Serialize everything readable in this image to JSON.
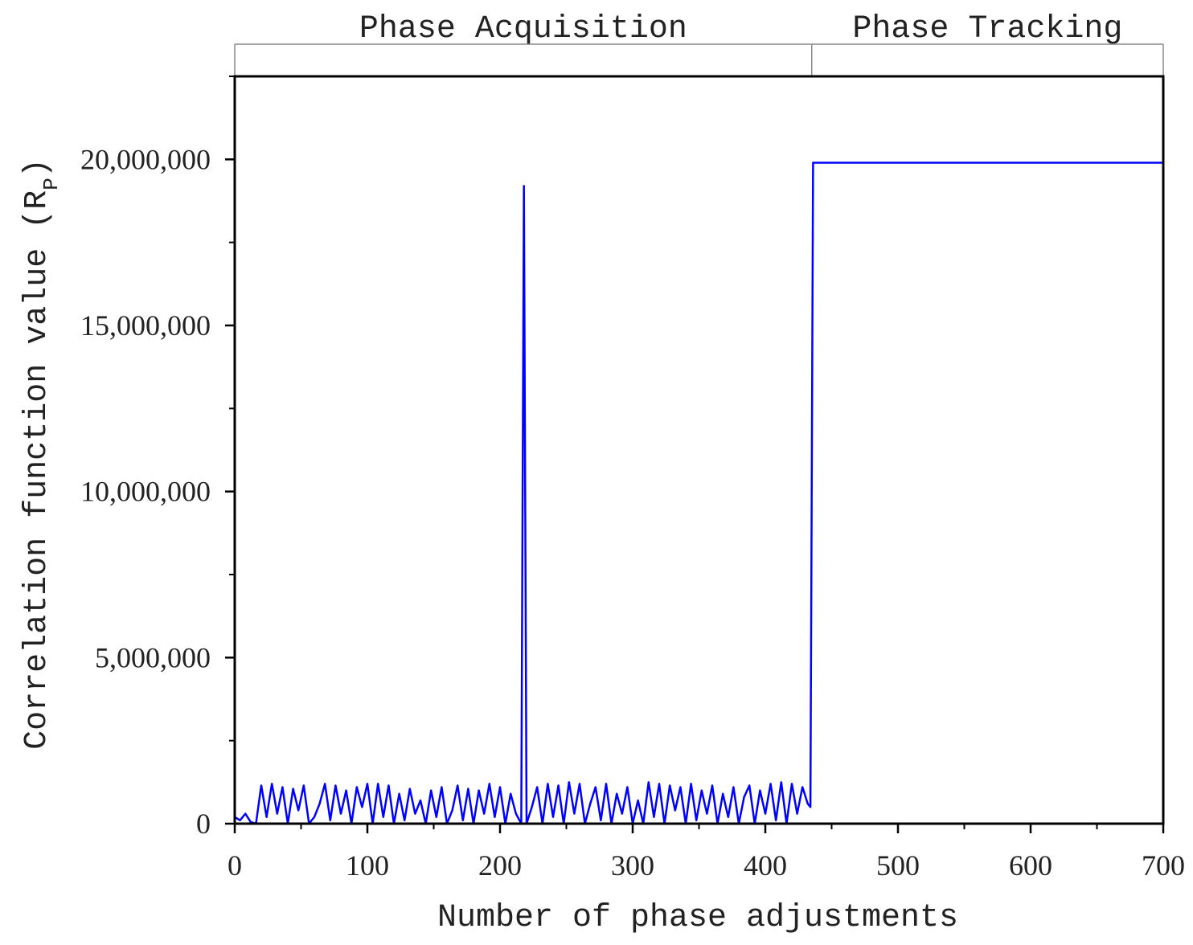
{
  "chart_data": {
    "type": "line",
    "xlabel": "Number of phase adjustments",
    "ylabel": "Correlation function value (R",
    "ylabel_sub": "P",
    "ylabel_end": ")",
    "regions": [
      {
        "label": "Phase Acquisition",
        "start": 0,
        "end": 435
      },
      {
        "label": "Phase Tracking",
        "start": 435,
        "end": 700
      }
    ],
    "xlim": [
      0,
      700
    ],
    "ylim": [
      0,
      22500000
    ],
    "xticks": [
      0,
      100,
      200,
      300,
      400,
      500,
      600,
      700
    ],
    "x_minor_ticks": [
      50,
      150,
      250,
      350,
      450,
      550,
      650
    ],
    "yticks": [
      0,
      {
        "value": 5000000,
        "label": "5,000,000"
      },
      {
        "value": 10000000,
        "label": "10,000,000"
      },
      {
        "value": 15000000,
        "label": "15,000,000"
      },
      {
        "value": 20000000,
        "label": "20,000,000"
      }
    ],
    "y_minor_ticks": [
      2500000,
      7500000,
      12500000,
      17500000,
      22500000
    ],
    "series": [
      {
        "color": "#0000ff",
        "x": [
          0,
          4,
          8,
          12,
          16,
          20,
          24,
          28,
          32,
          36,
          40,
          44,
          48,
          52,
          56,
          60,
          64,
          68,
          72,
          76,
          80,
          84,
          88,
          92,
          96,
          100,
          104,
          108,
          112,
          116,
          120,
          124,
          128,
          132,
          136,
          140,
          144,
          148,
          152,
          156,
          160,
          164,
          168,
          172,
          176,
          180,
          184,
          188,
          192,
          196,
          200,
          204,
          208,
          212,
          216,
          218,
          220,
          224,
          228,
          232,
          236,
          240,
          244,
          248,
          252,
          256,
          260,
          264,
          268,
          272,
          276,
          280,
          284,
          288,
          292,
          296,
          300,
          304,
          308,
          312,
          316,
          320,
          324,
          328,
          332,
          336,
          340,
          344,
          348,
          352,
          356,
          360,
          364,
          368,
          372,
          376,
          380,
          384,
          388,
          392,
          396,
          400,
          404,
          408,
          412,
          416,
          420,
          424,
          428,
          432,
          434,
          436,
          500,
          600,
          700
        ],
        "values": [
          200000,
          100000,
          300000,
          50000,
          0,
          1150000,
          200000,
          1200000,
          300000,
          1100000,
          0,
          1050000,
          400000,
          1150000,
          0,
          200000,
          600000,
          1200000,
          100000,
          1150000,
          300000,
          1000000,
          0,
          1100000,
          500000,
          1200000,
          0,
          1200000,
          200000,
          1150000,
          0,
          900000,
          100000,
          1050000,
          300000,
          700000,
          0,
          1000000,
          200000,
          1100000,
          0,
          400000,
          1150000,
          100000,
          1050000,
          0,
          1000000,
          300000,
          1200000,
          200000,
          1100000,
          0,
          900000,
          300000,
          0,
          19200000,
          0,
          500000,
          1100000,
          0,
          1200000,
          200000,
          1150000,
          0,
          1250000,
          300000,
          1200000,
          0,
          600000,
          1100000,
          100000,
          1200000,
          0,
          900000,
          300000,
          1100000,
          0,
          700000,
          0,
          1250000,
          200000,
          1200000,
          0,
          1150000,
          400000,
          1100000,
          0,
          1200000,
          100000,
          1000000,
          300000,
          1150000,
          0,
          900000,
          200000,
          1100000,
          0,
          800000,
          1150000,
          0,
          1000000,
          300000,
          1200000,
          100000,
          1250000,
          0,
          1200000,
          300000,
          1100000,
          600000,
          500000,
          19900000,
          19900000,
          19900000,
          19900000
        ]
      }
    ]
  }
}
